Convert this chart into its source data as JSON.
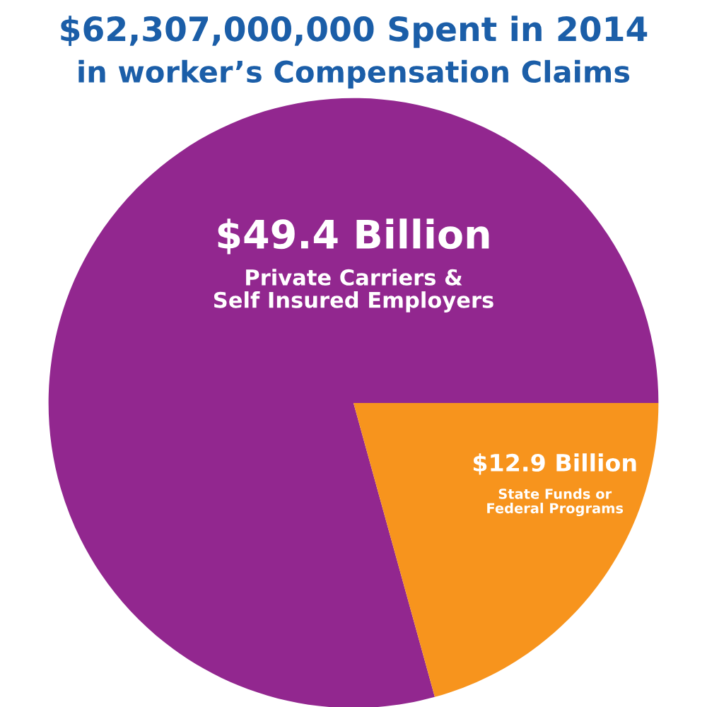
{
  "chart_data": {
    "type": "pie",
    "title": "$62,307,000,000 Spent in 2014",
    "subtitle": "in worker’s Compensation Claims",
    "categories": [
      "Private Carriers & Self Insured Employers",
      "State Funds or Federal Programs"
    ],
    "values": [
      49.4,
      12.9
    ],
    "value_labels": [
      "$49.4 Billion",
      "$12.9 Billion"
    ],
    "colors": [
      "#92278f",
      "#f7941d"
    ]
  }
}
